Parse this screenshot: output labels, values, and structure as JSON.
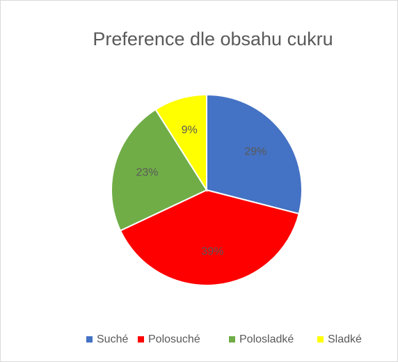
{
  "chart_data": {
    "type": "pie",
    "title": "Preference dle obsahu cukru",
    "categories": [
      "Suché",
      "Polosuché",
      "Polosladké",
      "Sladké"
    ],
    "values": [
      29,
      39,
      23,
      9
    ],
    "value_labels": [
      "29%",
      "39%",
      "23%",
      "9%"
    ],
    "colors": [
      "#4472c4",
      "#ff0000",
      "#70ad47",
      "#ffff00"
    ],
    "legend": "bottom"
  }
}
